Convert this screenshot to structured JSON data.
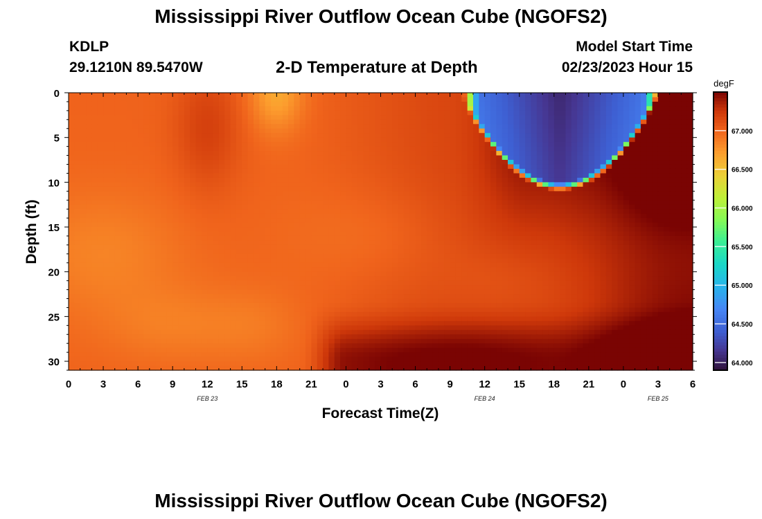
{
  "header": {
    "title": "Mississippi River Outflow Ocean Cube (NGOFS2)",
    "station_id": "KDLP",
    "station_coords": "29.1210N  89.5470W",
    "plot_title": "2-D Temperature at Depth",
    "model_label": "Model Start Time",
    "model_time": "02/23/2023 Hour 15"
  },
  "footer": {
    "title": "Mississippi River Outflow Ocean Cube (NGOFS2)"
  },
  "chart_data": {
    "type": "heatmap",
    "title": "2-D Temperature at Depth",
    "xlabel": "Forecast Time(Z)",
    "ylabel": "Depth (ft)",
    "x_unit": "hours since 2023-02-23 00Z",
    "x_tick_labels": [
      "0",
      "3",
      "6",
      "9",
      "12",
      "15",
      "18",
      "21",
      "0",
      "3",
      "6",
      "9",
      "12",
      "15",
      "18",
      "21",
      "0",
      "3",
      "6"
    ],
    "date_labels": [
      {
        "hour": 12,
        "label": "FEB 23"
      },
      {
        "hour": 36,
        "label": "FEB 24"
      },
      {
        "hour": 51,
        "label": "FEB 25"
      }
    ],
    "xlim": [
      0,
      54
    ],
    "ylim": [
      0,
      31
    ],
    "y_ticks": [
      0,
      5,
      10,
      15,
      20,
      25,
      30
    ],
    "colorbar": {
      "unit": "degF",
      "ticks": [
        "64.000",
        "64.500",
        "65.000",
        "65.500",
        "66.000",
        "66.500",
        "67.000"
      ],
      "range": [
        63.9,
        67.5
      ]
    },
    "grid": false,
    "features": [
      {
        "type": "cold_pool",
        "center_hour": 43,
        "min_temp": 64.0,
        "top_depth": 0,
        "bottom_depth": 10.5
      },
      {
        "type": "warm_bottom_layer",
        "start_hour": 22,
        "depth_range": [
          24,
          31
        ],
        "max_temp": 67.5
      },
      {
        "type": "cool_midlayer",
        "hour_range": [
          0,
          20
        ],
        "temp": 66.8
      }
    ]
  }
}
